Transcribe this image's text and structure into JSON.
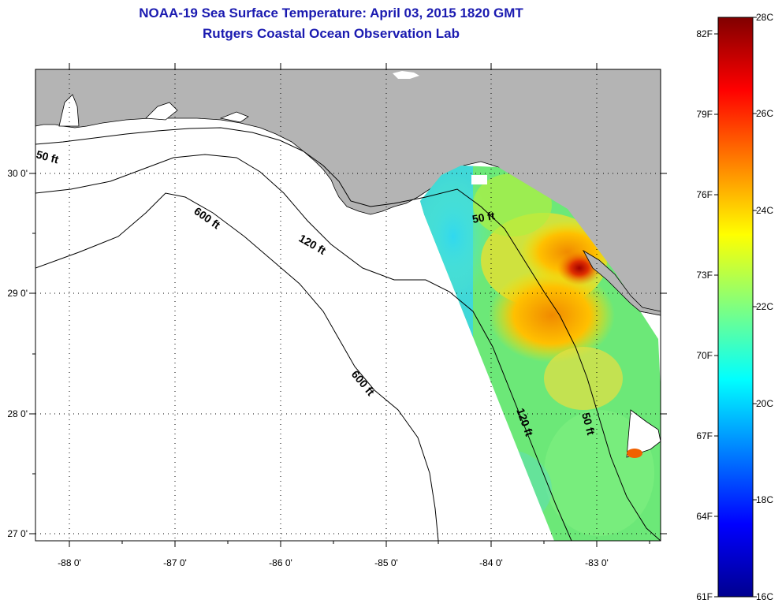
{
  "header": {
    "title": "NOAA-19 Sea Surface Temperature:  April 03, 2015 1820 GMT",
    "subtitle": "Rutgers Coastal Ocean Observation Lab"
  },
  "axes": {
    "x_ticks": [
      "-88 0'",
      "-87 0'",
      "-86 0'",
      "-85 0'",
      "-84 0'",
      "-83 0'"
    ],
    "y_ticks": [
      "30 0'",
      "29 0'",
      "28 0'",
      "27 0'"
    ]
  },
  "contour_labels": [
    "50 ft",
    "600 ft",
    "120 ft",
    "600 ft",
    "50 ft",
    "120 ft",
    "50 ft"
  ],
  "colorbar": {
    "celsius_labels": [
      "28C",
      "26C",
      "24C",
      "22C",
      "20C",
      "18C",
      "16C"
    ],
    "fahrenheit_labels": [
      "82F",
      "79F",
      "76F",
      "73F",
      "70F",
      "67F",
      "64F",
      "61F"
    ],
    "range_c": [
      16,
      28
    ]
  },
  "colors": {
    "land": "#b4b4b4",
    "water": "#ffffff",
    "title": "#1a1ab0"
  }
}
